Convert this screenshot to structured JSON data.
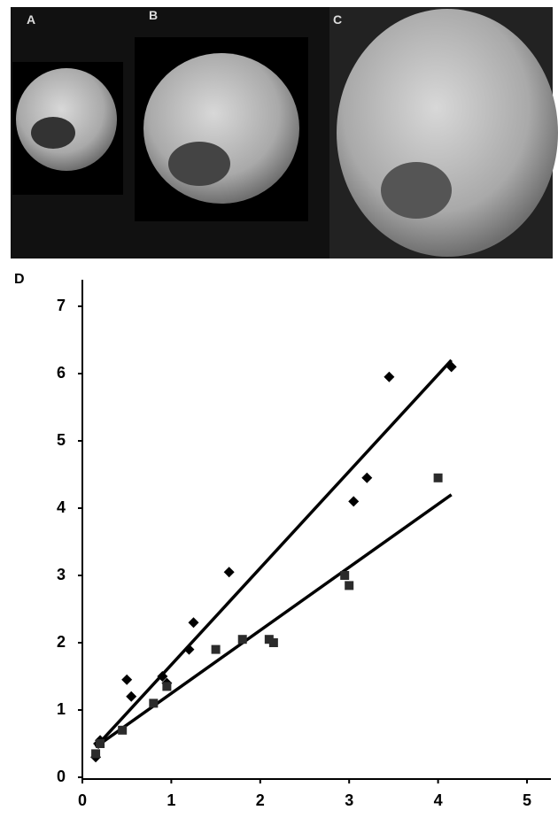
{
  "panels": {
    "labels": [
      "A",
      "B",
      "C"
    ]
  },
  "chart_data": {
    "type": "scatter",
    "label": "D",
    "xlim": [
      0,
      5
    ],
    "ylim": [
      0,
      7
    ],
    "xticks": [
      0,
      1,
      2,
      3,
      4,
      5
    ],
    "yticks": [
      0,
      1,
      2,
      3,
      4,
      5,
      6,
      7
    ],
    "series": [
      {
        "marker": "diamond",
        "color": "#000000",
        "x": [
          0.15,
          0.18,
          0.2,
          0.5,
          0.55,
          0.9,
          0.95,
          1.2,
          1.25,
          1.65,
          3.05,
          3.2,
          3.45,
          4.15
        ],
        "values": [
          0.3,
          0.5,
          0.55,
          1.45,
          1.2,
          1.5,
          1.4,
          1.9,
          2.3,
          3.05,
          4.1,
          4.45,
          5.95,
          6.1
        ]
      },
      {
        "marker": "square",
        "color": "#2b2b2b",
        "x": [
          0.15,
          0.2,
          0.45,
          0.8,
          0.95,
          1.5,
          1.8,
          2.1,
          2.15,
          2.95,
          3.0,
          4.0
        ],
        "values": [
          0.35,
          0.5,
          0.7,
          1.1,
          1.35,
          1.9,
          2.05,
          2.05,
          2.0,
          3.0,
          2.85,
          4.45
        ]
      }
    ],
    "trend_lines": [
      {
        "color": "#000000",
        "x": [
          0.15,
          4.15
        ],
        "values": [
          0.45,
          6.2
        ]
      },
      {
        "color": "#000000",
        "x": [
          0.15,
          4.15
        ],
        "values": [
          0.45,
          4.2
        ]
      }
    ]
  }
}
